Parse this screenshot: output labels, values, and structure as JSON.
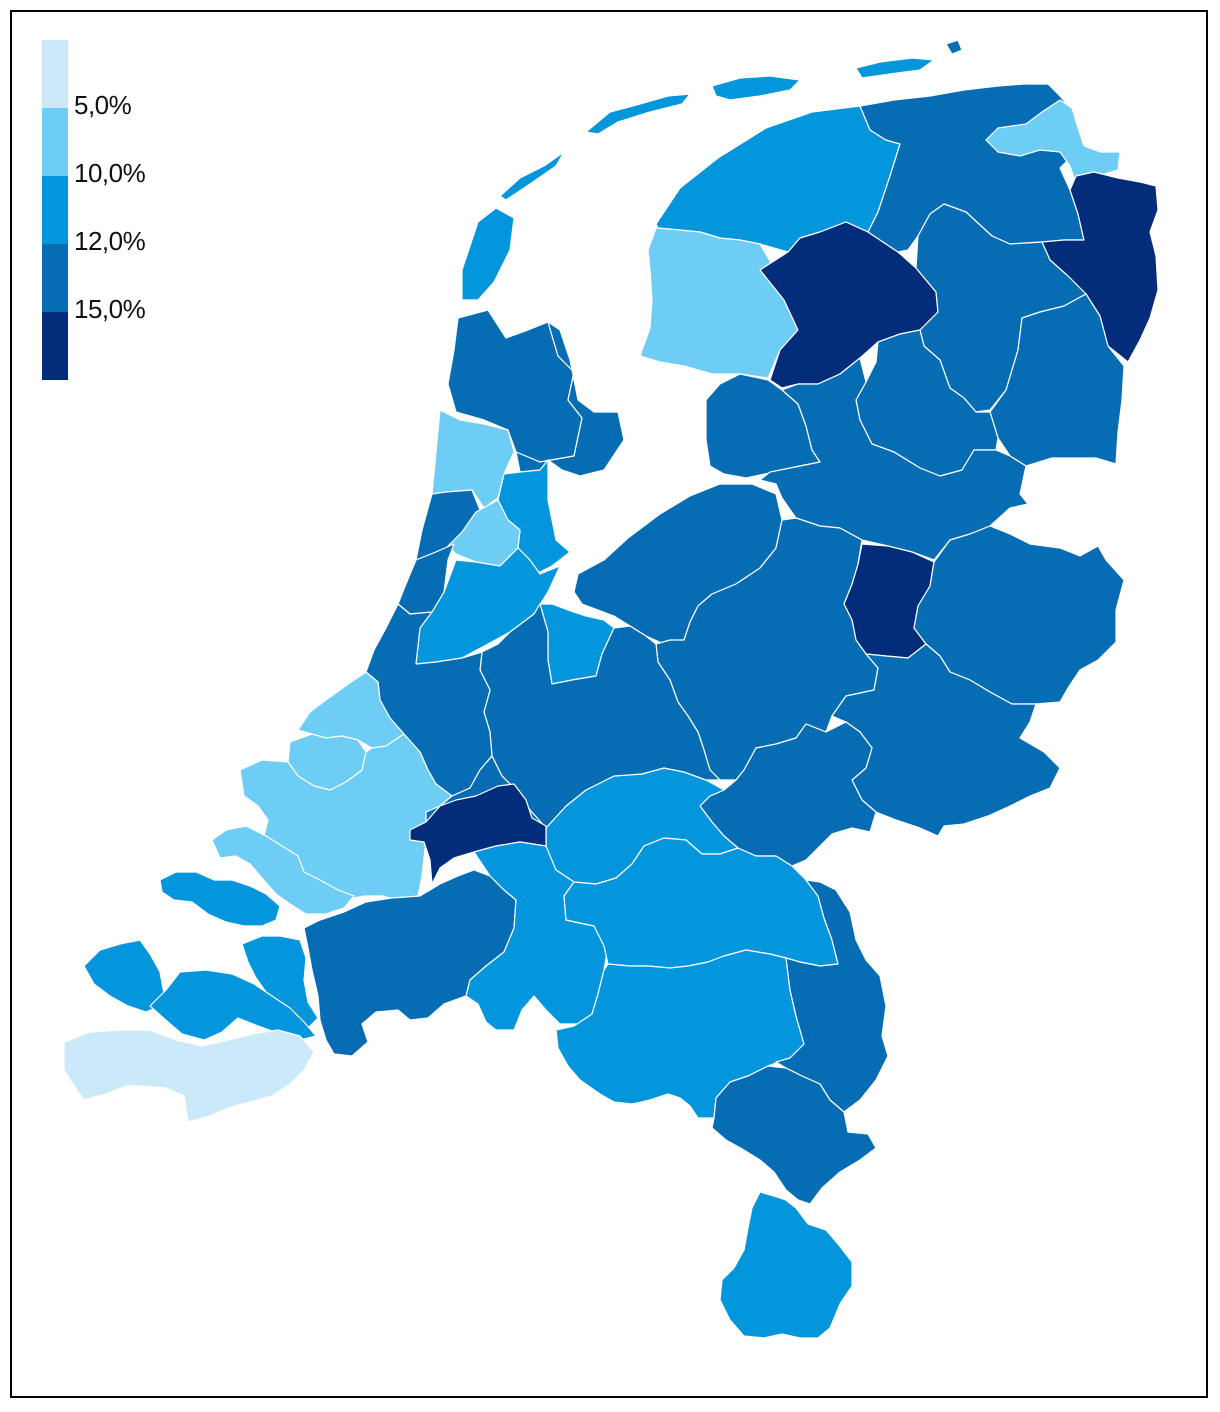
{
  "legend": {
    "thresholds": [
      "5,0%",
      "10,0%",
      "12,0%",
      "15,0%"
    ],
    "classes": [
      {
        "color": "#cce9fa"
      },
      {
        "color": "#6dcdf5"
      },
      {
        "color": "#0496dc"
      },
      {
        "color": "#066db5"
      },
      {
        "color": "#032c7a"
      }
    ]
  },
  "map": {
    "regions": [
      {
        "id": "texel",
        "class": 2
      },
      {
        "id": "vlieland",
        "class": 2
      },
      {
        "id": "terschelling",
        "class": 2
      },
      {
        "id": "ameland",
        "class": 2
      },
      {
        "id": "schiermonnikoog",
        "class": 2
      },
      {
        "id": "rottumeroog",
        "class": 3
      },
      {
        "id": "noordkop",
        "class": 3
      },
      {
        "id": "west-friesland",
        "class": 3
      },
      {
        "id": "kennemerland",
        "class": 1
      },
      {
        "id": "zaanstreek",
        "class": 2
      },
      {
        "id": "haarlem",
        "class": 1
      },
      {
        "id": "ijmond",
        "class": 3
      },
      {
        "id": "bollenstreek",
        "class": 3
      },
      {
        "id": "amsterdam-region",
        "class": 2
      },
      {
        "id": "noord-friesland",
        "class": 2
      },
      {
        "id": "zuidwest-friesland",
        "class": 1
      },
      {
        "id": "zuidoost-friesland",
        "class": 4
      },
      {
        "id": "delfzijl",
        "class": 1
      },
      {
        "id": "noord-groningen",
        "class": 3
      },
      {
        "id": "oost-groningen",
        "class": 4
      },
      {
        "id": "groningen-centraal",
        "class": 3
      },
      {
        "id": "noord-drenthe",
        "class": 3
      },
      {
        "id": "zuidoost-drenthe",
        "class": 3
      },
      {
        "id": "zuidwest-drenthe",
        "class": 3
      },
      {
        "id": "noordoostpolder",
        "class": 3
      },
      {
        "id": "flevoland",
        "class": 3
      },
      {
        "id": "noord-overijssel",
        "class": 3
      },
      {
        "id": "zwolle-region",
        "class": 4
      },
      {
        "id": "twente",
        "class": 3
      },
      {
        "id": "gooi",
        "class": 2
      },
      {
        "id": "leiden",
        "class": 3
      },
      {
        "id": "utrecht",
        "class": 3
      },
      {
        "id": "veluwe",
        "class": 3
      },
      {
        "id": "achterhoek",
        "class": 3
      },
      {
        "id": "den-haag",
        "class": 1
      },
      {
        "id": "delft-westland",
        "class": 1
      },
      {
        "id": "rotterdam",
        "class": 1
      },
      {
        "id": "gouda",
        "class": 3
      },
      {
        "id": "arnhem-nijmegen",
        "class": 3
      },
      {
        "id": "rivierenland",
        "class": 2
      },
      {
        "id": "dordrecht",
        "class": 4
      },
      {
        "id": "voorne-putten",
        "class": 1
      },
      {
        "id": "goeree",
        "class": 2
      },
      {
        "id": "schouwen",
        "class": 2
      },
      {
        "id": "walcheren",
        "class": 2
      },
      {
        "id": "tholen",
        "class": 2
      },
      {
        "id": "zeeuws-vlaanderen",
        "class": 0
      },
      {
        "id": "west-brabant",
        "class": 3
      },
      {
        "id": "midden-brabant",
        "class": 2
      },
      {
        "id": "noordoost-brabant",
        "class": 2
      },
      {
        "id": "zuidoost-brabant",
        "class": 2
      },
      {
        "id": "noord-limburg",
        "class": 3
      },
      {
        "id": "midden-limburg",
        "class": 3
      },
      {
        "id": "zuid-limburg",
        "class": 2
      }
    ]
  }
}
